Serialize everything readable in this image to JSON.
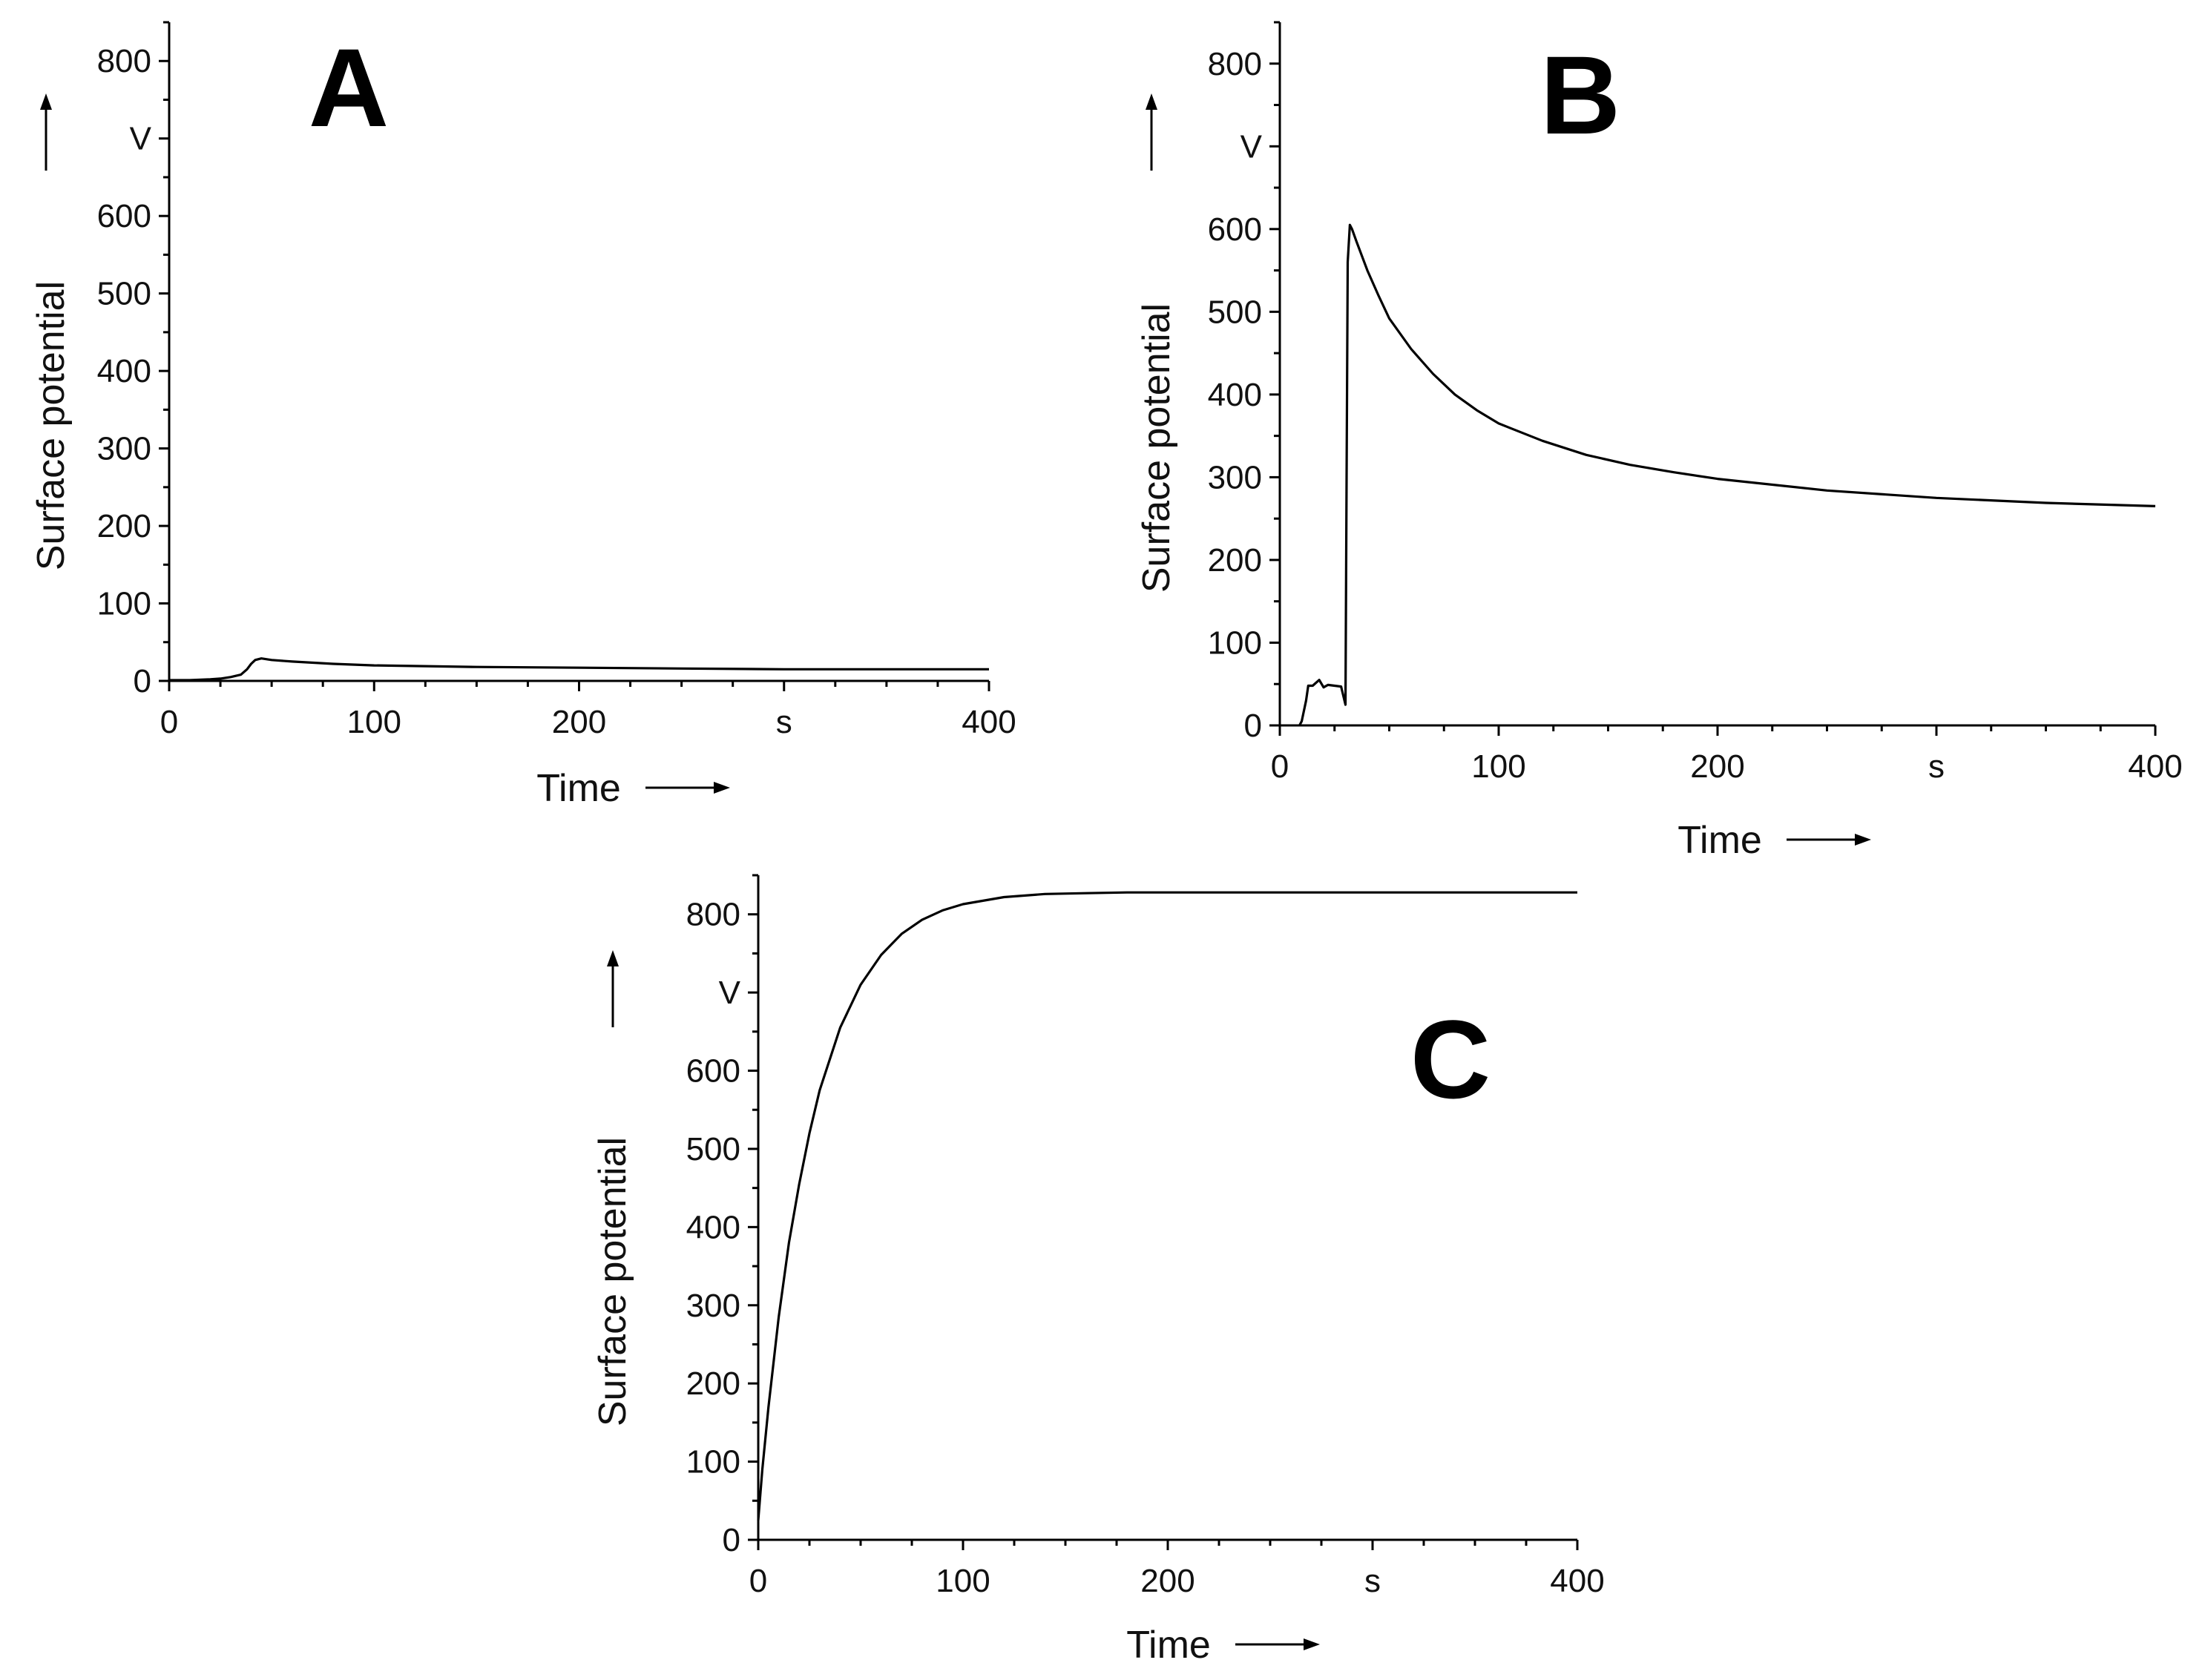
{
  "chart_data": [
    {
      "type": "line",
      "panel_label": "A",
      "xlabel": "Time",
      "ylabel": "Surface potential",
      "x_unit": "s",
      "y_unit": "V",
      "xlim": [
        0,
        400
      ],
      "ylim": [
        0,
        850
      ],
      "x_ticks": [
        0,
        100,
        200,
        300,
        400
      ],
      "x_tick_labels": [
        "0",
        "100",
        "200",
        "s",
        "400"
      ],
      "y_ticks": [
        0,
        100,
        200,
        300,
        400,
        500,
        600,
        700,
        800
      ],
      "y_tick_labels": [
        "0",
        "100",
        "200",
        "300",
        "400",
        "500",
        "600",
        "V",
        "800"
      ],
      "series": [
        {
          "name": "surface potential",
          "x": [
            0,
            10,
            20,
            25,
            30,
            35,
            38,
            40,
            42,
            45,
            50,
            60,
            80,
            100,
            150,
            200,
            250,
            300,
            350,
            400
          ],
          "y": [
            1,
            1,
            2,
            3,
            5,
            8,
            15,
            22,
            27,
            29,
            27,
            25,
            22,
            20,
            18,
            17,
            16,
            15,
            15,
            15
          ]
        }
      ]
    },
    {
      "type": "line",
      "panel_label": "B",
      "xlabel": "Time",
      "ylabel": "Surface potential",
      "x_unit": "s",
      "y_unit": "V",
      "xlim": [
        0,
        400
      ],
      "ylim": [
        0,
        850
      ],
      "x_ticks": [
        0,
        100,
        200,
        300,
        400
      ],
      "x_tick_labels": [
        "0",
        "100",
        "200",
        "s",
        "400"
      ],
      "y_ticks": [
        0,
        100,
        200,
        300,
        400,
        500,
        600,
        700,
        800
      ],
      "y_tick_labels": [
        "0",
        "100",
        "200",
        "300",
        "400",
        "500",
        "600",
        "V",
        "800"
      ],
      "series": [
        {
          "name": "surface potential",
          "x": [
            9,
            10,
            12,
            13,
            15,
            18,
            20,
            22,
            25,
            28,
            30,
            30.5,
            31,
            32,
            33,
            35,
            40,
            45,
            50,
            60,
            70,
            80,
            90,
            100,
            120,
            140,
            160,
            180,
            200,
            250,
            300,
            350,
            400
          ],
          "y": [
            0,
            5,
            30,
            48,
            48,
            55,
            46,
            49,
            48,
            47,
            25,
            300,
            560,
            605,
            600,
            585,
            550,
            520,
            492,
            455,
            425,
            400,
            381,
            365,
            344,
            327,
            315,
            306,
            298,
            284,
            275,
            269,
            265
          ]
        }
      ]
    },
    {
      "type": "line",
      "panel_label": "C",
      "xlabel": "Time",
      "ylabel": "Surface potential",
      "x_unit": "s",
      "y_unit": "V",
      "xlim": [
        0,
        400
      ],
      "ylim": [
        0,
        850
      ],
      "x_ticks": [
        0,
        100,
        200,
        300,
        400
      ],
      "x_tick_labels": [
        "0",
        "100",
        "200",
        "s",
        "400"
      ],
      "y_ticks": [
        0,
        100,
        200,
        300,
        400,
        500,
        600,
        700,
        800
      ],
      "y_tick_labels": [
        "0",
        "100",
        "200",
        "300",
        "400",
        "500",
        "600",
        "V",
        "800"
      ],
      "series": [
        {
          "name": "surface potential",
          "x": [
            0,
            2,
            5,
            10,
            15,
            20,
            25,
            30,
            40,
            50,
            60,
            70,
            80,
            90,
            100,
            120,
            140,
            160,
            180,
            200,
            250,
            300,
            350,
            400
          ],
          "y": [
            25,
            90,
            170,
            285,
            380,
            455,
            520,
            575,
            655,
            710,
            748,
            775,
            793,
            805,
            813,
            822,
            826,
            827,
            828,
            828,
            828,
            828,
            828,
            828
          ]
        }
      ]
    }
  ]
}
